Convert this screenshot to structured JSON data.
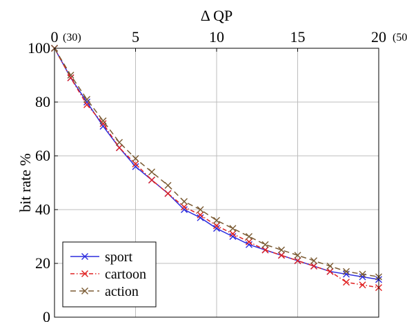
{
  "chart_data": {
    "type": "line",
    "title": "",
    "xlabel": "Δ QP",
    "ylabel": "bit rate %",
    "xlim": [
      0,
      20
    ],
    "ylim": [
      0,
      100
    ],
    "x_ticks": [
      {
        "value": 0,
        "label": "0",
        "note": "(30)"
      },
      {
        "value": 5,
        "label": "5",
        "note": ""
      },
      {
        "value": 10,
        "label": "10",
        "note": ""
      },
      {
        "value": 15,
        "label": "15",
        "note": ""
      },
      {
        "value": 20,
        "label": "20",
        "note": "(50)"
      }
    ],
    "y_ticks": [
      0,
      20,
      40,
      60,
      80,
      100
    ],
    "y_tick_labels": [
      "0",
      "20",
      "40",
      "60",
      "80",
      "100"
    ],
    "x_axis_position": "top",
    "grid": true,
    "legend_position": "bottom-left",
    "x": [
      0,
      1,
      2,
      3,
      4,
      5,
      6,
      7,
      8,
      9,
      10,
      11,
      12,
      13,
      14,
      15,
      16,
      17,
      18,
      19,
      20
    ],
    "series": [
      {
        "name": "sport",
        "color": "#2d2dde",
        "line_style": "solid",
        "marker": "x",
        "values": [
          100,
          89,
          80,
          71,
          63,
          56,
          51,
          46,
          40,
          37,
          33,
          30,
          27,
          25,
          23,
          21,
          19,
          17,
          16,
          15,
          14
        ]
      },
      {
        "name": "cartoon",
        "color": "#e02020",
        "line_style": "dash-dot",
        "marker": "x",
        "values": [
          100,
          89,
          79,
          72,
          63,
          57,
          51,
          46,
          41,
          38,
          34,
          31,
          28,
          25,
          23,
          21,
          19,
          17,
          13,
          12,
          11
        ]
      },
      {
        "name": "action",
        "color": "#7a5a32",
        "line_style": "dashed",
        "marker": "x",
        "values": [
          100,
          90,
          81,
          73,
          65,
          59,
          54,
          49,
          43,
          40,
          36,
          33,
          30,
          27,
          25,
          23,
          21,
          19,
          17,
          16,
          15
        ]
      }
    ]
  }
}
